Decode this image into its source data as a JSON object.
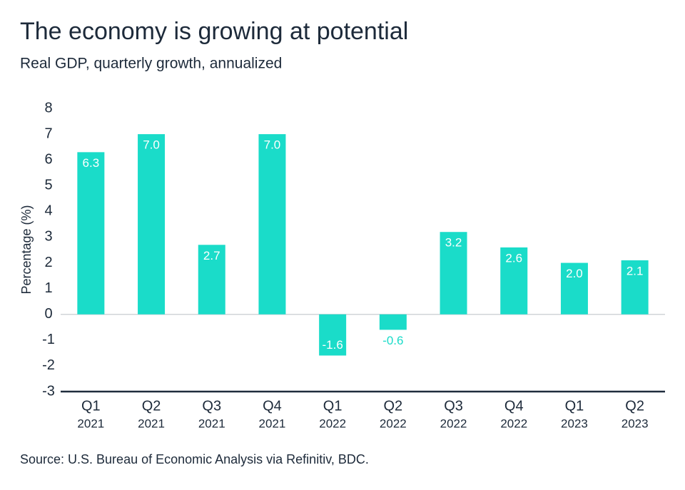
{
  "chart_data": {
    "type": "bar",
    "title": "The economy is growing at potential",
    "subtitle": "Real GDP, quarterly growth, annualized",
    "y_label": "Percentage (%)",
    "source": "Source: U.S. Bureau of Economic Analysis via Refinitiv, BDC.",
    "categories": [
      [
        "Q1",
        "2021"
      ],
      [
        "Q2",
        "2021"
      ],
      [
        "Q3",
        "2021"
      ],
      [
        "Q4",
        "2021"
      ],
      [
        "Q1",
        "2022"
      ],
      [
        "Q2",
        "2022"
      ],
      [
        "Q3",
        "2022"
      ],
      [
        "Q4",
        "2022"
      ],
      [
        "Q1",
        "2023"
      ],
      [
        "Q2",
        "2023"
      ]
    ],
    "values": [
      6.3,
      7.0,
      2.7,
      7.0,
      -1.6,
      -0.6,
      3.2,
      2.6,
      2.0,
      2.1
    ],
    "value_labels": [
      "6.3",
      "7.0",
      "2.7",
      "7.0",
      "-1.6",
      "-0.6",
      "3.2",
      "2.6",
      "2.0",
      "2.1"
    ],
    "color": "#1adcc9",
    "ylim": [
      -3,
      8
    ],
    "yticks": [
      -3,
      -2,
      -1,
      0,
      1,
      2,
      3,
      4,
      5,
      6,
      7,
      8
    ]
  }
}
